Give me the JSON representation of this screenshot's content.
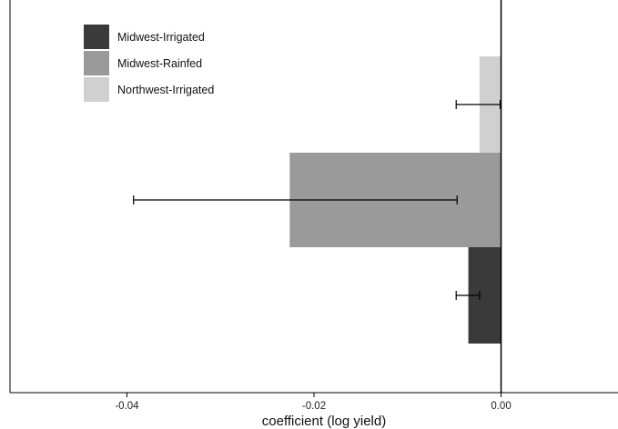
{
  "chart_data": {
    "type": "bar",
    "orientation": "horizontal",
    "xlabel": "coefficient (log yield)",
    "ylabel": "",
    "xlim": [
      -0.0525,
      0.0125
    ],
    "x_ticks": [
      -0.04,
      -0.02,
      0.0
    ],
    "x_tick_labels": [
      "-0.04",
      "-0.02",
      "0.00"
    ],
    "series": [
      {
        "name": "Midwest-Irrigated",
        "color": "#3a3a3a",
        "value": -0.0035,
        "error_low": -0.0048,
        "error_high": -0.0023
      },
      {
        "name": "Midwest-Rainfed",
        "color": "#9a9a9a",
        "value": -0.0226,
        "error_low": -0.0393,
        "error_high": -0.0047
      },
      {
        "name": "Northwest-Irrigated",
        "color": "#d0d0d0",
        "value": -0.0023,
        "error_low": -0.0048,
        "error_high": -0.0001
      }
    ],
    "legend_position": "top-left",
    "grid": false,
    "zero_line": true
  }
}
